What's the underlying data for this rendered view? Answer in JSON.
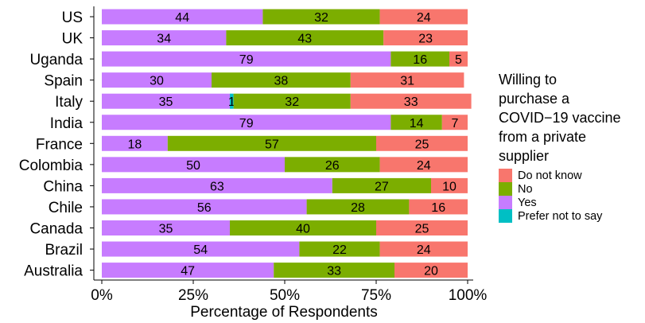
{
  "chart_data": {
    "type": "bar",
    "orientation": "horizontal",
    "stacked": true,
    "categories": [
      "US",
      "UK",
      "Uganda",
      "Spain",
      "Italy",
      "India",
      "France",
      "Colombia",
      "China",
      "Chile",
      "Canada",
      "Brazil",
      "Australia"
    ],
    "series": [
      {
        "name": "Yes",
        "color": "#C77CFF",
        "values": [
          44,
          34,
          79,
          30,
          35,
          79,
          18,
          50,
          63,
          56,
          35,
          54,
          47
        ],
        "labels": [
          "44",
          "34",
          "79",
          "30",
          "35",
          "79",
          "18",
          "50",
          "63",
          "56",
          "35",
          "54",
          "47"
        ]
      },
      {
        "name": "Prefer not to say",
        "color": "#00BFC4",
        "values": [
          0,
          0,
          0,
          0,
          1,
          0,
          0,
          0,
          0,
          0,
          0,
          0,
          0
        ],
        "labels": [
          "",
          "",
          "",
          "",
          "1",
          "",
          "",
          "",
          "",
          "",
          "",
          "",
          ""
        ]
      },
      {
        "name": "No",
        "color": "#7CAE00",
        "values": [
          32,
          43,
          16,
          38,
          32,
          14,
          57,
          26,
          27,
          28,
          40,
          22,
          33
        ],
        "labels": [
          "32",
          "43",
          "16",
          "38",
          "32",
          "14",
          "57",
          "26",
          "27",
          "28",
          "40",
          "22",
          "33"
        ]
      },
      {
        "name": "Do not know",
        "color": "#F8766D",
        "values": [
          24,
          23,
          5,
          31,
          33,
          7,
          25,
          24,
          10,
          16,
          25,
          24,
          20
        ],
        "labels": [
          "24",
          "23",
          "5",
          "31",
          "33",
          "7",
          "25",
          "24",
          "10",
          "16",
          "25",
          "24",
          "20"
        ]
      }
    ],
    "xlabel": "Percentage of Respondents",
    "ylabel": "",
    "xlim": [
      0,
      100
    ],
    "xticks": [
      "0%",
      "25%",
      "50%",
      "75%",
      "100%"
    ],
    "grid": false,
    "legend": {
      "title_lines": [
        "Willing to",
        "purchase a",
        "COVID−19 vaccine",
        "from a private",
        "supplier"
      ],
      "placement": "right",
      "entries": [
        {
          "label": "Do not know",
          "color": "#F8766D"
        },
        {
          "label": "No",
          "color": "#7CAE00"
        },
        {
          "label": "Yes",
          "color": "#C77CFF"
        },
        {
          "label": "Prefer not to say",
          "color": "#00BFC4"
        }
      ]
    }
  }
}
